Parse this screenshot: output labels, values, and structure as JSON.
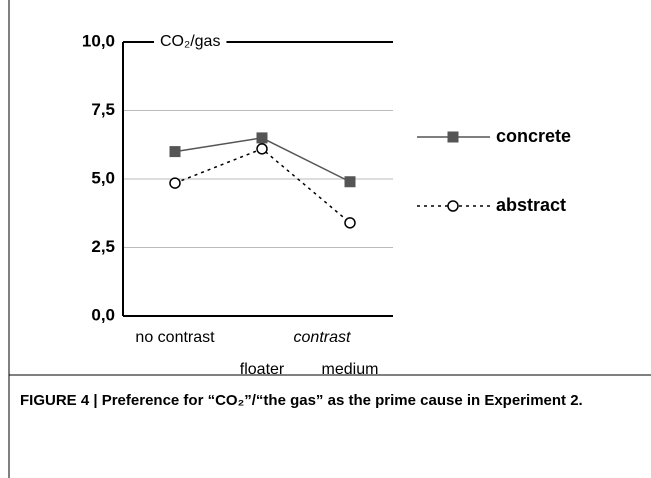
{
  "chart_data": {
    "type": "line",
    "y_label": "CO₂/gas",
    "categories": [
      "no contrast",
      "floater",
      "medium"
    ],
    "group_label": "contrast",
    "series": [
      {
        "name": "concrete",
        "color": "#555555",
        "marker": "square",
        "dash": "solid",
        "values": [
          6.0,
          6.5,
          4.9
        ]
      },
      {
        "name": "abstract",
        "color": "#000000",
        "marker": "circle",
        "dash": "dotted",
        "values": [
          4.85,
          6.1,
          3.4
        ]
      }
    ],
    "ylim": [
      0,
      10
    ],
    "yticks": [
      {
        "value": 0,
        "label": "0,0"
      },
      {
        "value": 2.5,
        "label": "2,5"
      },
      {
        "value": 5,
        "label": "5,0"
      },
      {
        "value": 7.5,
        "label": "7,5"
      },
      {
        "value": 10,
        "label": "10,0"
      }
    ],
    "grid": true,
    "legend": "right",
    "caption": "FIGURE 4 | Preference for “CO₂”/“the gas” as the prime cause in Experiment 2."
  }
}
